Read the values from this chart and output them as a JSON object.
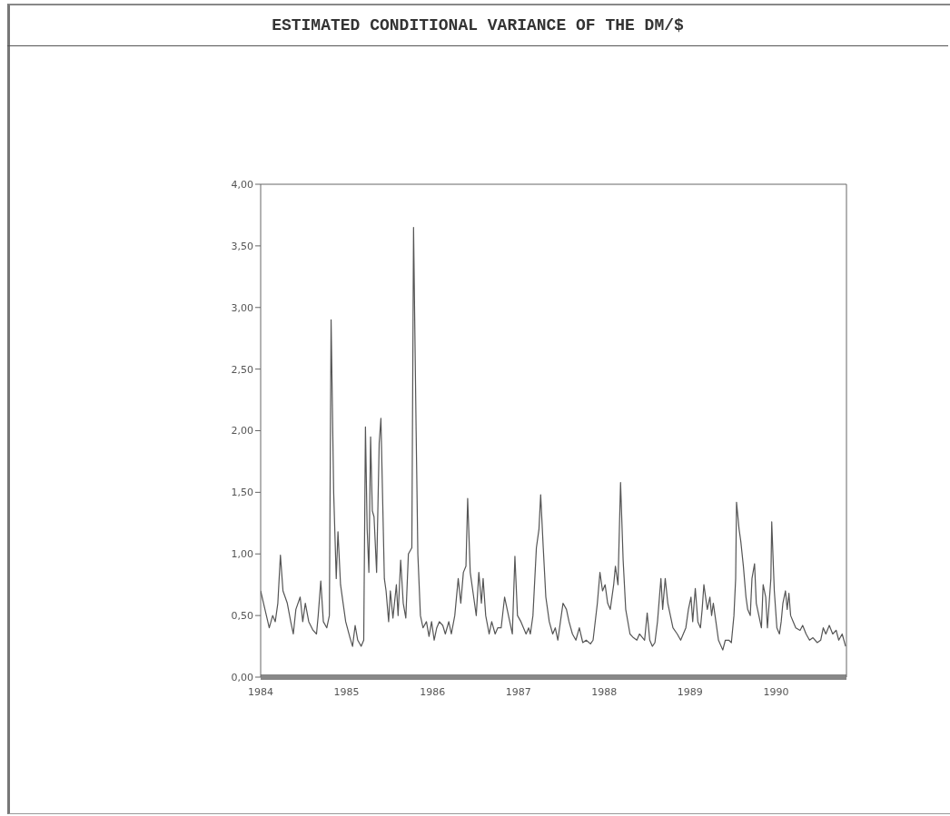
{
  "chart_data": {
    "type": "line",
    "title": "ESTIMATED CONDITIONAL VARIANCE OF THE DM/$",
    "x": [
      1984.0,
      1984.05,
      1984.1,
      1984.14,
      1984.17,
      1984.2,
      1984.23,
      1984.26,
      1984.31,
      1984.35,
      1984.38,
      1984.41,
      1984.46,
      1984.49,
      1984.52,
      1984.56,
      1984.61,
      1984.65,
      1984.67,
      1984.7,
      1984.73,
      1984.77,
      1984.8,
      1984.82,
      1984.85,
      1984.88,
      1984.9,
      1984.93,
      1984.96,
      1984.99,
      1985.04,
      1985.07,
      1985.1,
      1985.13,
      1985.17,
      1985.2,
      1985.22,
      1985.24,
      1985.26,
      1985.28,
      1985.3,
      1985.32,
      1985.35,
      1985.38,
      1985.4,
      1985.42,
      1985.44,
      1985.46,
      1985.49,
      1985.51,
      1985.54,
      1985.58,
      1985.6,
      1985.63,
      1985.66,
      1985.69,
      1985.72,
      1985.76,
      1985.78,
      1985.81,
      1985.83,
      1985.86,
      1985.89,
      1985.93,
      1985.96,
      1985.99,
      1986.02,
      1986.05,
      1986.08,
      1986.12,
      1986.15,
      1986.19,
      1986.22,
      1986.26,
      1986.3,
      1986.33,
      1986.36,
      1986.39,
      1986.41,
      1986.44,
      1986.48,
      1986.51,
      1986.54,
      1986.57,
      1986.59,
      1986.62,
      1986.66,
      1986.69,
      1986.73,
      1986.76,
      1986.8,
      1986.84,
      1986.87,
      1986.9,
      1986.93,
      1986.96,
      1986.99,
      1987.03,
      1987.06,
      1987.09,
      1987.12,
      1987.14,
      1987.17,
      1987.21,
      1987.24,
      1987.26,
      1987.29,
      1987.32,
      1987.36,
      1987.4,
      1987.43,
      1987.46,
      1987.49,
      1987.52,
      1987.56,
      1987.59,
      1987.63,
      1987.67,
      1987.71,
      1987.75,
      1987.79,
      1987.84,
      1987.87,
      1987.92,
      1987.95,
      1987.98,
      1988.01,
      1988.04,
      1988.07,
      1988.11,
      1988.13,
      1988.16,
      1988.19,
      1988.22,
      1988.25,
      1988.3,
      1988.34,
      1988.38,
      1988.41,
      1988.47,
      1988.5,
      1988.53,
      1988.56,
      1988.59,
      1988.62,
      1988.66,
      1988.68,
      1988.71,
      1988.74,
      1988.77,
      1988.8,
      1988.85,
      1988.89,
      1988.92,
      1988.95,
      1988.98,
      1989.01,
      1989.03,
      1989.06,
      1989.09,
      1989.12,
      1989.14,
      1989.16,
      1989.2,
      1989.23,
      1989.25,
      1989.27,
      1989.3,
      1989.33,
      1989.38,
      1989.41,
      1989.45,
      1989.48,
      1989.51,
      1989.53,
      1989.54,
      1989.57,
      1989.59,
      1989.62,
      1989.65,
      1989.67,
      1989.7,
      1989.72,
      1989.75,
      1989.77,
      1989.8,
      1989.83,
      1989.85,
      1989.88,
      1989.9,
      1989.94,
      1989.95,
      1989.98,
      1990.01,
      1990.04,
      1990.06,
      1990.08,
      1990.11,
      1990.13,
      1990.15,
      1990.17,
      1990.2,
      1990.23,
      1990.28,
      1990.31,
      1990.35,
      1990.39,
      1990.43,
      1990.48,
      1990.52,
      1990.55,
      1990.58,
      1990.62,
      1990.66,
      1990.7,
      1990.73,
      1990.77,
      1990.81
    ],
    "series": [
      {
        "color": "#555555",
        "values": [
          0.7,
          0.55,
          0.4,
          0.5,
          0.45,
          0.6,
          0.99,
          0.7,
          0.6,
          0.45,
          0.35,
          0.55,
          0.65,
          0.45,
          0.6,
          0.45,
          0.38,
          0.35,
          0.5,
          0.78,
          0.45,
          0.4,
          0.5,
          2.9,
          1.5,
          0.8,
          1.18,
          0.75,
          0.6,
          0.45,
          0.32,
          0.25,
          0.42,
          0.3,
          0.25,
          0.3,
          2.03,
          1.2,
          0.85,
          1.95,
          1.35,
          1.3,
          0.85,
          1.9,
          2.1,
          1.45,
          0.8,
          0.7,
          0.45,
          0.7,
          0.48,
          0.75,
          0.5,
          0.95,
          0.6,
          0.48,
          1.0,
          1.05,
          3.65,
          2.0,
          1.0,
          0.5,
          0.4,
          0.45,
          0.33,
          0.45,
          0.3,
          0.4,
          0.45,
          0.42,
          0.35,
          0.45,
          0.35,
          0.5,
          0.8,
          0.6,
          0.85,
          0.9,
          1.45,
          0.85,
          0.65,
          0.5,
          0.85,
          0.6,
          0.8,
          0.5,
          0.35,
          0.45,
          0.35,
          0.4,
          0.4,
          0.65,
          0.55,
          0.45,
          0.35,
          0.98,
          0.5,
          0.45,
          0.4,
          0.35,
          0.4,
          0.35,
          0.5,
          1.05,
          1.2,
          1.48,
          1.05,
          0.65,
          0.45,
          0.35,
          0.4,
          0.3,
          0.45,
          0.6,
          0.55,
          0.45,
          0.35,
          0.3,
          0.4,
          0.28,
          0.3,
          0.27,
          0.3,
          0.6,
          0.85,
          0.7,
          0.75,
          0.6,
          0.55,
          0.75,
          0.9,
          0.75,
          1.58,
          0.95,
          0.55,
          0.35,
          0.32,
          0.3,
          0.35,
          0.3,
          0.52,
          0.3,
          0.25,
          0.28,
          0.45,
          0.8,
          0.55,
          0.8,
          0.6,
          0.5,
          0.4,
          0.35,
          0.3,
          0.35,
          0.4,
          0.55,
          0.65,
          0.45,
          0.72,
          0.45,
          0.4,
          0.55,
          0.75,
          0.55,
          0.65,
          0.5,
          0.6,
          0.45,
          0.3,
          0.22,
          0.3,
          0.3,
          0.28,
          0.5,
          0.8,
          1.42,
          1.2,
          1.1,
          0.9,
          0.65,
          0.55,
          0.5,
          0.8,
          0.92,
          0.6,
          0.5,
          0.4,
          0.75,
          0.65,
          0.4,
          0.8,
          1.26,
          0.7,
          0.4,
          0.35,
          0.45,
          0.6,
          0.7,
          0.55,
          0.68,
          0.5,
          0.45,
          0.4,
          0.38,
          0.42,
          0.35,
          0.3,
          0.32,
          0.28,
          0.3,
          0.4,
          0.35,
          0.42,
          0.35,
          0.38,
          0.3,
          0.35,
          0.25
        ]
      }
    ],
    "xlim": [
      1984,
      1990.82
    ],
    "xticks": [
      1984,
      1985,
      1986,
      1987,
      1988,
      1989,
      1990
    ],
    "ylim": [
      0,
      4
    ],
    "yticks": [
      {
        "value": 0,
        "label": "0,00"
      },
      {
        "value": 0.5,
        "label": "0,50"
      },
      {
        "value": 1,
        "label": "1,00"
      },
      {
        "value": 1.5,
        "label": "1,50"
      },
      {
        "value": 2,
        "label": "2,00"
      },
      {
        "value": 2.5,
        "label": "2,50"
      },
      {
        "value": 3,
        "label": "3,00"
      },
      {
        "value": 3.5,
        "label": "3,50"
      },
      {
        "value": 4,
        "label": "4,00"
      }
    ],
    "grid": false,
    "marker": "none",
    "line_style": "solid"
  }
}
